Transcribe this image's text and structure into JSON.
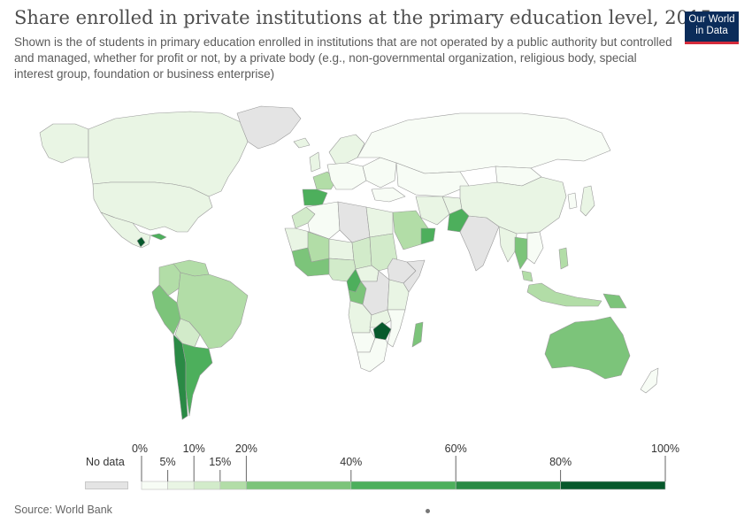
{
  "header": {
    "title": "Share enrolled in private institutions at the primary education level, 2015",
    "subtitle": "Shown is the of students in primary education enrolled in institutions that are not operated by a public authority but controlled and managed, whether for profit or not, by a private body (e.g., non-governmental organization, religious body, special interest group, foundation or business enterprise)"
  },
  "logo": {
    "line1": "Our World",
    "line2": "in Data"
  },
  "legend": {
    "no_data_label": "No data",
    "no_data_color": "#e4e4e4",
    "bins": [
      {
        "from": 0,
        "to": 5,
        "color": "#f7fcf5"
      },
      {
        "from": 5,
        "to": 10,
        "color": "#e9f5e4"
      },
      {
        "from": 10,
        "to": 15,
        "color": "#d2ebca"
      },
      {
        "from": 15,
        "to": 20,
        "color": "#b2dda7"
      },
      {
        "from": 20,
        "to": 40,
        "color": "#7cc47a"
      },
      {
        "from": 40,
        "to": 60,
        "color": "#4daf5c"
      },
      {
        "from": 60,
        "to": 80,
        "color": "#2a8a45"
      },
      {
        "from": 80,
        "to": 100,
        "color": "#07592c"
      }
    ],
    "ticks": [
      "0%",
      "5%",
      "10%",
      "15%",
      "20%",
      "40%",
      "60%",
      "80%",
      "100%"
    ]
  },
  "footer": {
    "source": "Source: World Bank"
  },
  "map_regions": [
    {
      "name": "Canada",
      "color": "#e9f5e4"
    },
    {
      "name": "United States",
      "color": "#e9f5e4"
    },
    {
      "name": "Alaska",
      "color": "#e9f5e4"
    },
    {
      "name": "Greenland",
      "color": "#e4e4e4"
    },
    {
      "name": "Mexico",
      "color": "#e9f5e4"
    },
    {
      "name": "Guatemala",
      "color": "#07592c"
    },
    {
      "name": "Cuba",
      "color": "#4daf5c"
    },
    {
      "name": "Colombia",
      "color": "#b2dda7"
    },
    {
      "name": "Venezuela",
      "color": "#b2dda7"
    },
    {
      "name": "Peru",
      "color": "#7cc47a"
    },
    {
      "name": "Brazil",
      "color": "#b2dda7"
    },
    {
      "name": "Bolivia",
      "color": "#d2ebca"
    },
    {
      "name": "Chile",
      "color": "#2a8a45"
    },
    {
      "name": "Argentina",
      "color": "#4daf5c"
    },
    {
      "name": "Iceland",
      "color": "#e9f5e4"
    },
    {
      "name": "Spain",
      "color": "#4daf5c"
    },
    {
      "name": "France",
      "color": "#b2dda7"
    },
    {
      "name": "United Kingdom",
      "color": "#e9f5e4"
    },
    {
      "name": "Scandinavia",
      "color": "#e9f5e4"
    },
    {
      "name": "Central Europe",
      "color": "#f7fcf5"
    },
    {
      "name": "Eastern Europe",
      "color": "#f7fcf5"
    },
    {
      "name": "Russia",
      "color": "#f7fcf5"
    },
    {
      "name": "Kazakhstan",
      "color": "#f7fcf5"
    },
    {
      "name": "Turkey",
      "color": "#f7fcf5"
    },
    {
      "name": "Morocco",
      "color": "#d2ebca"
    },
    {
      "name": "Algeria",
      "color": "#f7fcf5"
    },
    {
      "name": "Libya",
      "color": "#e4e4e4"
    },
    {
      "name": "Egypt",
      "color": "#e9f5e4"
    },
    {
      "name": "Mauritania",
      "color": "#e9f5e4"
    },
    {
      "name": "Mali",
      "color": "#b2dda7"
    },
    {
      "name": "Niger",
      "color": "#e9f5e4"
    },
    {
      "name": "Chad",
      "color": "#d2ebca"
    },
    {
      "name": "Sudan",
      "color": "#d2ebca"
    },
    {
      "name": "West Africa coast",
      "color": "#7cc47a"
    },
    {
      "name": "Nigeria",
      "color": "#d2ebca"
    },
    {
      "name": "Ethiopia",
      "color": "#e4e4e4"
    },
    {
      "name": "Somalia",
      "color": "#e4e4e4"
    },
    {
      "name": "Cameroon",
      "color": "#4daf5c"
    },
    {
      "name": "Central African Republic",
      "color": "#e9f5e4"
    },
    {
      "name": "Gabon Congo",
      "color": "#7cc47a"
    },
    {
      "name": "DR Congo",
      "color": "#e4e4e4"
    },
    {
      "name": "Kenya Tanzania",
      "color": "#e9f5e4"
    },
    {
      "name": "Angola",
      "color": "#e9f5e4"
    },
    {
      "name": "Zambia",
      "color": "#e9f5e4"
    },
    {
      "name": "Zimbabwe",
      "color": "#07592c"
    },
    {
      "name": "Mozambique",
      "color": "#f7fcf5"
    },
    {
      "name": "Namibia",
      "color": "#f7fcf5"
    },
    {
      "name": "South Africa",
      "color": "#f7fcf5"
    },
    {
      "name": "Madagascar",
      "color": "#7cc47a"
    },
    {
      "name": "Saudi Arabia",
      "color": "#b2dda7"
    },
    {
      "name": "Oman",
      "color": "#4daf5c"
    },
    {
      "name": "Iran",
      "color": "#e9f5e4"
    },
    {
      "name": "Afghanistan",
      "color": "#e9f5e4"
    },
    {
      "name": "Pakistan",
      "color": "#4daf5c"
    },
    {
      "name": "India",
      "color": "#e4e4e4"
    },
    {
      "name": "China",
      "color": "#e9f5e4"
    },
    {
      "name": "Mongolia",
      "color": "#f7fcf5"
    },
    {
      "name": "Myanmar",
      "color": "#e9f5e4"
    },
    {
      "name": "Thailand",
      "color": "#7cc47a"
    },
    {
      "name": "Indochina",
      "color": "#f7fcf5"
    },
    {
      "name": "Malaysia",
      "color": "#b2dda7"
    },
    {
      "name": "Indonesia",
      "color": "#b2dda7"
    },
    {
      "name": "Philippines",
      "color": "#b2dda7"
    },
    {
      "name": "Japan",
      "color": "#e9f5e4"
    },
    {
      "name": "Korea",
      "color": "#f7fcf5"
    },
    {
      "name": "Papua New Guinea",
      "color": "#7cc47a"
    },
    {
      "name": "Australia",
      "color": "#7cc47a"
    },
    {
      "name": "New Zealand",
      "color": "#f7fcf5"
    }
  ]
}
